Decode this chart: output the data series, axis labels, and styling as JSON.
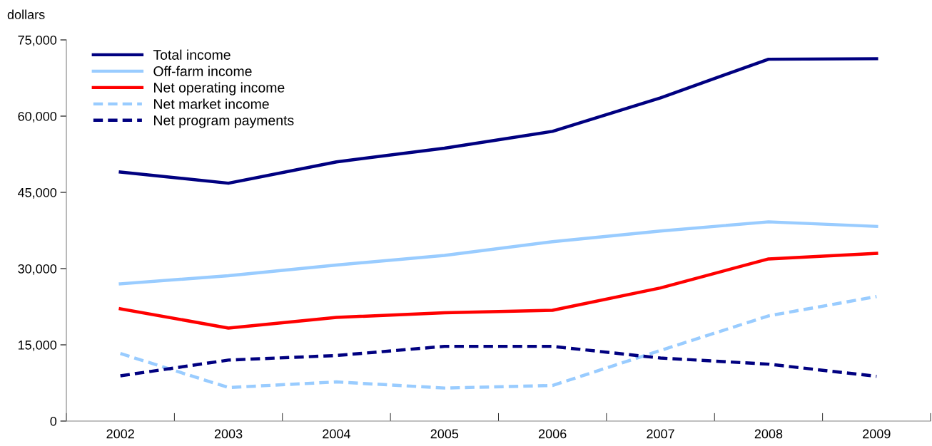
{
  "chart_data": {
    "type": "line",
    "ylabel": "dollars",
    "categories": [
      "2002",
      "2003",
      "2004",
      "2005",
      "2006",
      "2007",
      "2008",
      "2009"
    ],
    "series": [
      {
        "name": "Total income",
        "color": "#000080",
        "line_style": "solid",
        "values": [
          49000,
          46800,
          51000,
          53700,
          57000,
          63600,
          71200,
          71300
        ]
      },
      {
        "name": "Off-farm income",
        "color": "#99ccff",
        "line_style": "solid",
        "values": [
          27000,
          28600,
          30700,
          32600,
          35300,
          37400,
          39200,
          38300
        ]
      },
      {
        "name": "Net operating income",
        "color": "#ff0000",
        "line_style": "solid",
        "values": [
          22100,
          18300,
          20400,
          21300,
          21800,
          26200,
          31900,
          33000
        ]
      },
      {
        "name": "Net market income",
        "color": "#99ccff",
        "line_style": "dashed",
        "values": [
          13300,
          6600,
          7700,
          6500,
          7000,
          13900,
          20700,
          24500
        ]
      },
      {
        "name": "Net program payments",
        "color": "#000080",
        "line_style": "dashed",
        "values": [
          8900,
          12000,
          12900,
          14700,
          14700,
          12400,
          11200,
          8800
        ]
      }
    ],
    "ylim": [
      0,
      75000
    ],
    "yticks": [
      {
        "value": 0,
        "label": "0"
      },
      {
        "value": 15000,
        "label": "15,000"
      },
      {
        "value": 30000,
        "label": "30,000"
      },
      {
        "value": 45000,
        "label": "45,000"
      },
      {
        "value": 60000,
        "label": "60,000"
      },
      {
        "value": 75000,
        "label": "75,000"
      }
    ],
    "grid": false,
    "legend": "top left",
    "marker": "none"
  }
}
